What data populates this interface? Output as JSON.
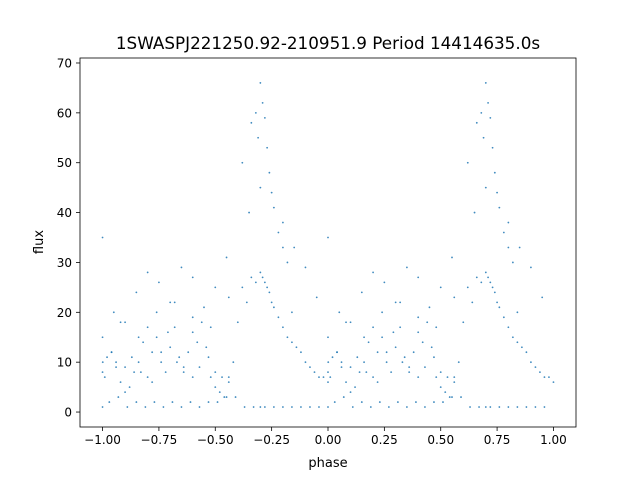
{
  "chart_data": {
    "type": "scatter",
    "title": "1SWASPJ221250.92-210951.9 Period 14414635.0s",
    "xlabel": "phase",
    "ylabel": "flux",
    "xlim": [
      -1.1,
      1.1
    ],
    "ylim": [
      -3.0,
      71.0
    ],
    "grid": false,
    "legend": "none",
    "x_ticks": [
      {
        "value": -1.0,
        "label": "−1.00"
      },
      {
        "value": -0.75,
        "label": "−0.75"
      },
      {
        "value": -0.5,
        "label": "−0.50"
      },
      {
        "value": -0.25,
        "label": "−0.25"
      },
      {
        "value": 0.0,
        "label": "0.00"
      },
      {
        "value": 0.25,
        "label": "0.25"
      },
      {
        "value": 0.5,
        "label": "0.50"
      },
      {
        "value": 0.75,
        "label": "0.75"
      },
      {
        "value": 1.0,
        "label": "1.00"
      }
    ],
    "y_ticks": [
      {
        "value": 0,
        "label": "0"
      },
      {
        "value": 10,
        "label": "10"
      },
      {
        "value": 20,
        "label": "20"
      },
      {
        "value": 30,
        "label": "30"
      },
      {
        "value": 40,
        "label": "40"
      },
      {
        "value": 50,
        "label": "50"
      },
      {
        "value": 60,
        "label": "60"
      },
      {
        "value": 70,
        "label": "70"
      }
    ],
    "series": [
      {
        "color": "#1f77b4",
        "marker_size": 0.9,
        "x": [
          -1.0,
          -0.98,
          -0.96,
          -0.94,
          -0.92,
          -0.9,
          -0.88,
          -0.86,
          -0.84,
          -0.82,
          -0.8,
          -0.78,
          -0.76,
          -0.74,
          -0.72,
          -0.7,
          -0.68,
          -0.66,
          -0.64,
          -0.62,
          -0.6,
          -0.58,
          -0.56,
          -0.54,
          -0.52,
          -0.5,
          -0.48,
          -0.46,
          -0.44,
          -0.42,
          -0.4,
          -0.38,
          -0.36,
          -0.34,
          -0.32,
          -0.3,
          -0.29,
          -0.28,
          -0.27,
          -0.26,
          -0.25,
          -0.24,
          -0.22,
          -0.2,
          -0.18,
          -0.16,
          -0.14,
          -0.12,
          -0.1,
          -0.08,
          -0.06,
          -0.04,
          -0.02,
          0.0,
          -1.0,
          -0.97,
          -0.93,
          -0.89,
          -0.85,
          -0.81,
          -0.77,
          -0.73,
          -0.69,
          -0.65,
          -0.61,
          -0.57,
          -0.53,
          -0.49,
          -0.45,
          -0.41,
          -0.37,
          -0.33,
          -0.3,
          -0.28,
          -0.24,
          -0.2,
          -0.16,
          -0.12,
          -0.08,
          -0.04,
          -1.0,
          -0.95,
          -0.9,
          -0.85,
          -0.8,
          -0.75,
          -0.7,
          -0.65,
          -0.6,
          -0.55,
          -0.5,
          -0.45,
          -0.35,
          -0.3,
          -0.25,
          -0.2,
          -0.15,
          -0.1,
          -0.05,
          -0.999,
          -0.92,
          -0.84,
          -0.76,
          -0.68,
          -0.6,
          -0.52,
          -0.44,
          -0.38,
          -0.34,
          -0.32,
          -0.31,
          -0.3,
          -0.29,
          -0.28,
          -0.27,
          -0.26,
          -0.24,
          -0.22,
          -0.2,
          -0.18,
          -0.16,
          -1.0,
          -0.99,
          -0.96,
          -0.94,
          -0.9,
          -0.87,
          -0.83,
          -0.8,
          -0.78,
          -0.74,
          -0.71,
          -0.67,
          -0.64,
          -0.6,
          -0.57,
          -0.53,
          -0.5,
          -0.47,
          -0.44
        ],
        "y": [
          15,
          11,
          12,
          9,
          6,
          4,
          5,
          8,
          10,
          14,
          17,
          12,
          15,
          10,
          8,
          13,
          17,
          11,
          9,
          12,
          16,
          14,
          18,
          13,
          7,
          5,
          4,
          3,
          7,
          10,
          18,
          25,
          22,
          27,
          26,
          28,
          27,
          26,
          25,
          24,
          22,
          21,
          19,
          17,
          15,
          14,
          13,
          12,
          10,
          9,
          8,
          7,
          7,
          6,
          1,
          2,
          3,
          1,
          2,
          1,
          2,
          1,
          2,
          1,
          2,
          1,
          2,
          2,
          3,
          3,
          1,
          1,
          1,
          1,
          1,
          1,
          1,
          1,
          1,
          1,
          35,
          20,
          18,
          24,
          28,
          26,
          22,
          29,
          27,
          21,
          25,
          31,
          40,
          45,
          44,
          38,
          33,
          29,
          23,
          10,
          18,
          15,
          20,
          22,
          19,
          17,
          23,
          50,
          58,
          60,
          55,
          66,
          62,
          59,
          53,
          48,
          41,
          36,
          33,
          30,
          20,
          8,
          7,
          12,
          10,
          9,
          11,
          8,
          7,
          6,
          12,
          16,
          10,
          8,
          7,
          9,
          11,
          8,
          7,
          6
        ]
      }
    ]
  }
}
